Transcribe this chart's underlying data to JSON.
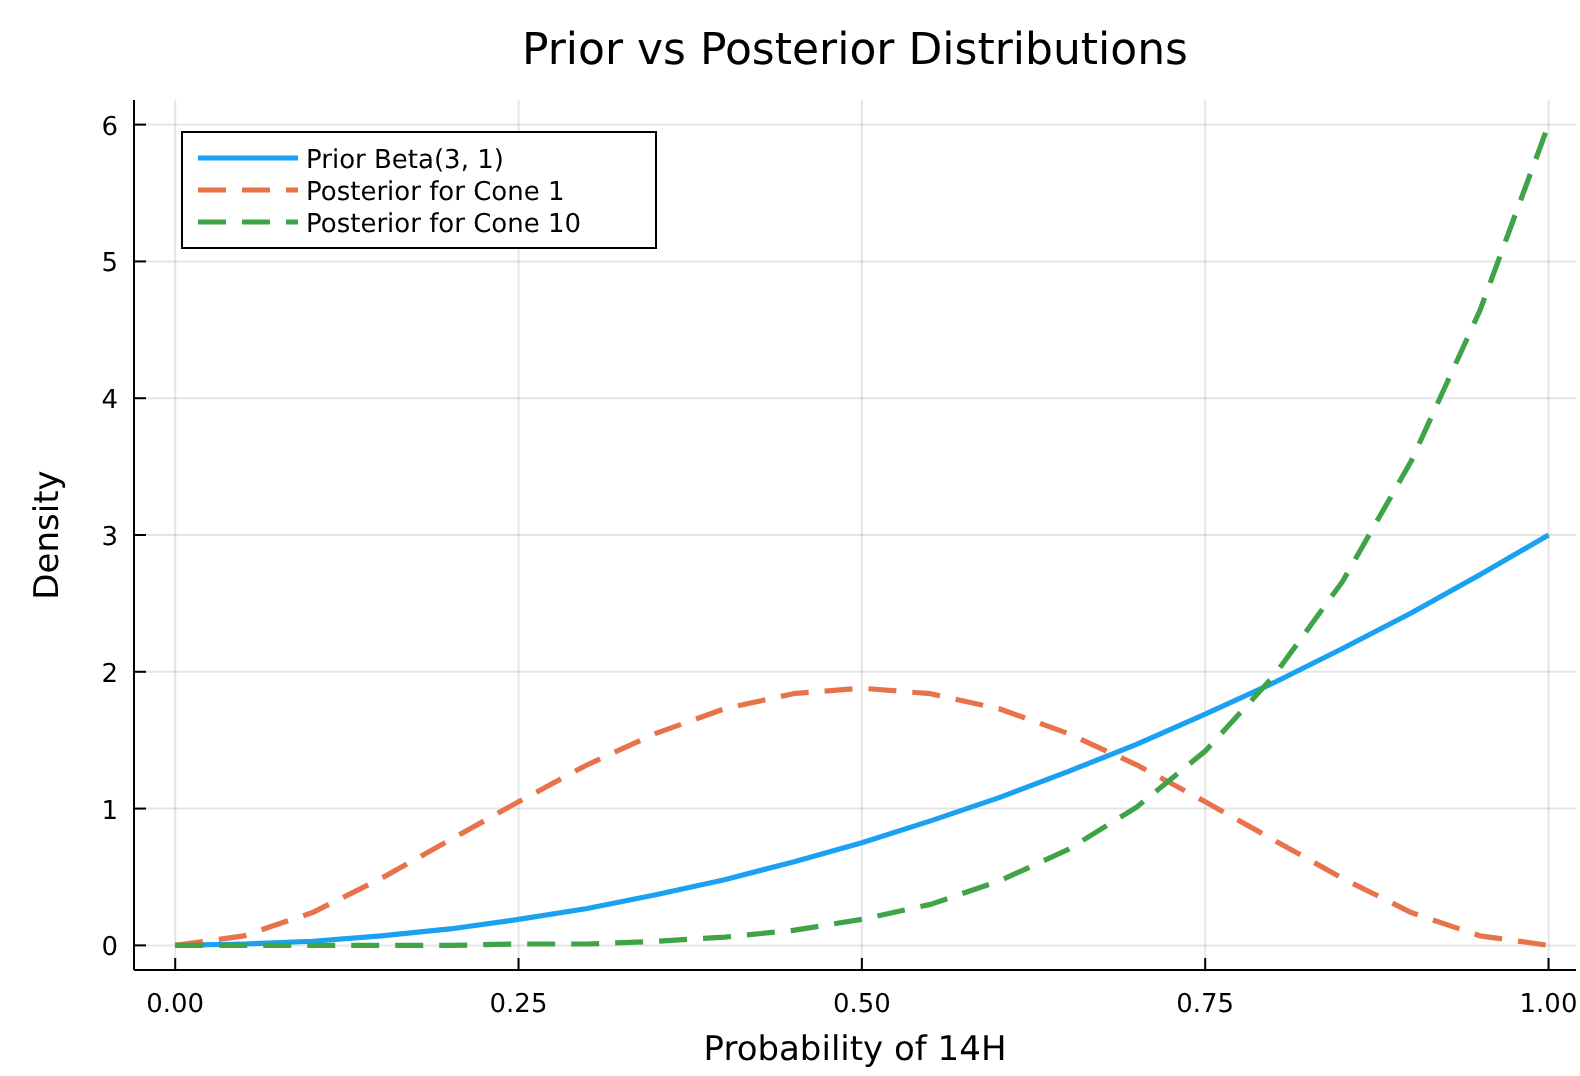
{
  "chart_data": {
    "type": "line",
    "title": "Prior vs Posterior Distributions",
    "xlabel": "Probability of 14H",
    "ylabel": "Density",
    "x": [
      0,
      0.05,
      0.1,
      0.15,
      0.2,
      0.25,
      0.3,
      0.35,
      0.4,
      0.45,
      0.5,
      0.55,
      0.6,
      0.65,
      0.7,
      0.75,
      0.8,
      0.85,
      0.9,
      0.95,
      1
    ],
    "series": [
      {
        "name": "Prior Beta(3, 1)",
        "color": "#1ba1f2",
        "line_style": "solid",
        "values": [
          0,
          0.01,
          0.03,
          0.07,
          0.12,
          0.19,
          0.27,
          0.37,
          0.48,
          0.61,
          0.75,
          0.91,
          1.08,
          1.27,
          1.47,
          1.69,
          1.92,
          2.17,
          2.43,
          2.71,
          3
        ]
      },
      {
        "name": "Posterior for Cone 1",
        "color": "#e8734a",
        "line_style": "dashed",
        "values": [
          0,
          0.07,
          0.24,
          0.49,
          0.77,
          1.05,
          1.32,
          1.55,
          1.73,
          1.84,
          1.88,
          1.84,
          1.73,
          1.55,
          1.32,
          1.05,
          0.77,
          0.49,
          0.24,
          0.07,
          0
        ]
      },
      {
        "name": "Posterior for Cone 10",
        "color": "#3ea447",
        "line_style": "dashed",
        "values": [
          0,
          0,
          0,
          0,
          0,
          0.01,
          0.01,
          0.03,
          0.06,
          0.11,
          0.19,
          0.3,
          0.47,
          0.7,
          1.01,
          1.42,
          1.97,
          2.66,
          3.54,
          4.64,
          6
        ]
      }
    ],
    "xlim": [
      -0.03,
      1.02
    ],
    "xticks": [
      {
        "value": 0,
        "label": "0.00"
      },
      0.25,
      {
        "value": 0.5,
        "label": "0.50"
      },
      0.75,
      {
        "value": 1,
        "label": "1.00"
      }
    ],
    "ylim": [
      -0.18,
      6.18
    ],
    "yticks": [
      0,
      1,
      2,
      3,
      4,
      5,
      6
    ],
    "grid": true,
    "legend": "top left"
  }
}
